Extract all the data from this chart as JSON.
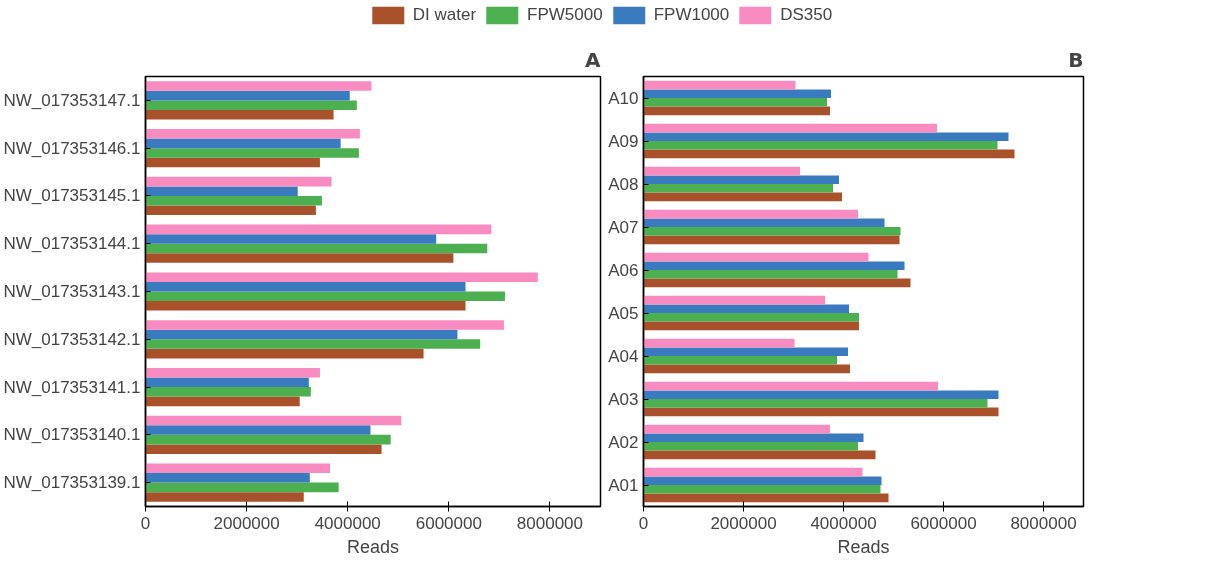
{
  "chart_data": [
    {
      "type": "bar",
      "orientation": "horizontal",
      "title": "A",
      "xlabel": "Reads",
      "legend": "top",
      "grid": false,
      "categories": [
        "NW_017353147.1",
        "NW_017353146.1",
        "NW_017353145.1",
        "NW_017353144.1",
        "NW_017353143.1",
        "NW_017353142.1",
        "NW_017353141.1",
        "NW_017353140.1",
        "NW_017353139.1"
      ],
      "xlim": [
        0,
        9000000
      ],
      "xticks": [
        0,
        2000000,
        4000000,
        6000000,
        8000000
      ],
      "series": [
        {
          "name": "DI water",
          "color": "#a9512a",
          "values": [
            3720000,
            3450000,
            3370000,
            6090000,
            6330000,
            5500000,
            3050000,
            4670000,
            3130000
          ]
        },
        {
          "name": "FPW5000",
          "color": "#4caf50",
          "values": [
            4180000,
            4220000,
            3490000,
            6760000,
            7110000,
            6620000,
            3270000,
            4850000,
            3820000
          ]
        },
        {
          "name": "FPW1000",
          "color": "#3a7bbf",
          "values": [
            4040000,
            3860000,
            3010000,
            5750000,
            6330000,
            6170000,
            3230000,
            4450000,
            3250000
          ]
        },
        {
          "name": "DS350",
          "color": "#f88bc0",
          "values": [
            4470000,
            4240000,
            3680000,
            6840000,
            7760000,
            7090000,
            3450000,
            5060000,
            3650000
          ]
        }
      ]
    },
    {
      "type": "bar",
      "orientation": "horizontal",
      "title": "B",
      "xlabel": "Reads",
      "grid": false,
      "categories": [
        "A10",
        "A09",
        "A08",
        "A07",
        "A06",
        "A05",
        "A04",
        "A03",
        "A02",
        "A01"
      ],
      "xlim": [
        0,
        8800000
      ],
      "xticks": [
        0,
        2000000,
        4000000,
        6000000,
        8000000
      ],
      "series": [
        {
          "color": "#a9512a",
          "values": [
            3730000,
            7420000,
            3970000,
            5120000,
            5340000,
            4310000,
            4130000,
            7100000,
            4640000,
            4900000
          ]
        },
        {
          "color": "#4caf50",
          "values": [
            3670000,
            7080000,
            3790000,
            5140000,
            5080000,
            4310000,
            3870000,
            6880000,
            4290000,
            4740000
          ]
        },
        {
          "color": "#3a7bbf",
          "values": [
            3750000,
            7300000,
            3910000,
            4820000,
            5220000,
            4110000,
            4090000,
            7100000,
            4400000,
            4760000
          ]
        },
        {
          "color": "#f88bc0",
          "values": [
            3040000,
            5870000,
            3130000,
            4290000,
            4500000,
            3630000,
            3020000,
            5890000,
            3730000,
            4380000
          ]
        }
      ]
    }
  ]
}
